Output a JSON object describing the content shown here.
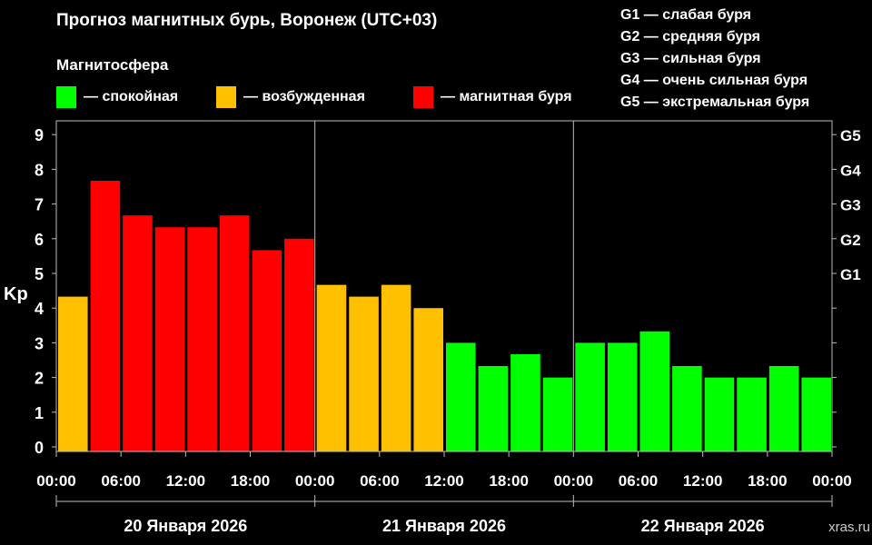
{
  "title": "Прогноз магнитных бурь, Воронеж (UTC+03)",
  "legend": {
    "heading": "Магнитосфера",
    "items": [
      {
        "label": "— спокойная",
        "color": "#00ff00"
      },
      {
        "label": "— возбужденная",
        "color": "#ffc000"
      },
      {
        "label": "— магнитная буря",
        "color": "#ff0000"
      }
    ]
  },
  "g_scale": [
    "G1 — слабая буря",
    "G2 — средняя буря",
    "G3 — сильная буря",
    "G4 — очень сильная буря",
    "G5 — экстремальная буря"
  ],
  "watermark": "xras.ru",
  "chart_data": {
    "type": "bar",
    "ylabel": "Kp",
    "ylim": [
      0,
      9
    ],
    "yticks": [
      "0",
      "1",
      "2",
      "3",
      "4",
      "5",
      "6",
      "7",
      "8",
      "9"
    ],
    "right_ticks": [
      {
        "label": "G1",
        "value": 5
      },
      {
        "label": "G2",
        "value": 6
      },
      {
        "label": "G3",
        "value": 7
      },
      {
        "label": "G4",
        "value": 8
      },
      {
        "label": "G5",
        "value": 9
      }
    ],
    "xticks": [
      "00:00",
      "06:00",
      "12:00",
      "18:00",
      "00:00",
      "06:00",
      "12:00",
      "18:00",
      "00:00",
      "06:00",
      "12:00",
      "18:00",
      "00:00"
    ],
    "days": [
      "20 Января 2026",
      "21 Января 2026",
      "22 Января 2026"
    ],
    "values": [
      4.33,
      7.67,
      6.67,
      6.33,
      6.33,
      6.67,
      5.67,
      6.0,
      4.67,
      4.33,
      4.67,
      4.0,
      3.0,
      2.33,
      2.67,
      2.0,
      3.0,
      3.0,
      3.33,
      2.33,
      2.0,
      2.0,
      2.33,
      2.0
    ],
    "colors": {
      "quiet": "#00ff00",
      "active": "#ffc000",
      "storm": "#ff0000"
    }
  }
}
